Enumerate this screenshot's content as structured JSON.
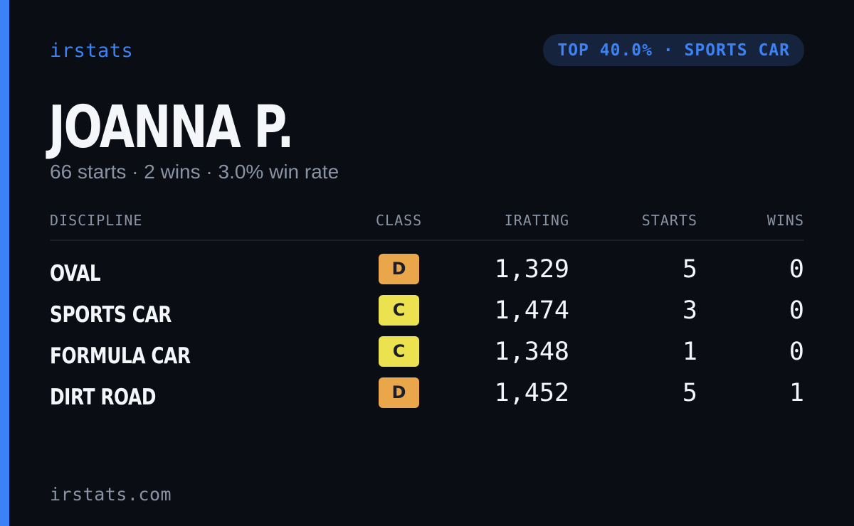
{
  "brand": "irstats",
  "rank_badge": "TOP 40.0% · SPORTS CAR",
  "driver": {
    "name": "JOANNA P.",
    "summary": "66 starts · 2 wins · 3.0% win rate"
  },
  "table": {
    "headers": {
      "discipline": "DISCIPLINE",
      "class": "CLASS",
      "irating": "IRATING",
      "starts": "STARTS",
      "wins": "WINS"
    },
    "rows": [
      {
        "discipline": "OVAL",
        "class": "D",
        "irating": "1,329",
        "starts": "5",
        "wins": "0"
      },
      {
        "discipline": "SPORTS CAR",
        "class": "C",
        "irating": "1,474",
        "starts": "3",
        "wins": "0"
      },
      {
        "discipline": "FORMULA CAR",
        "class": "C",
        "irating": "1,348",
        "starts": "1",
        "wins": "0"
      },
      {
        "discipline": "DIRT ROAD",
        "class": "D",
        "irating": "1,452",
        "starts": "5",
        "wins": "1"
      }
    ]
  },
  "class_colors": {
    "D": "#e9a64b",
    "C": "#ece24f"
  },
  "colors": {
    "accent": "#3b82f6",
    "background": "#0a0d14",
    "pill_background": "#16233c",
    "muted_text": "#8a93a3"
  },
  "footer": "irstats.com"
}
